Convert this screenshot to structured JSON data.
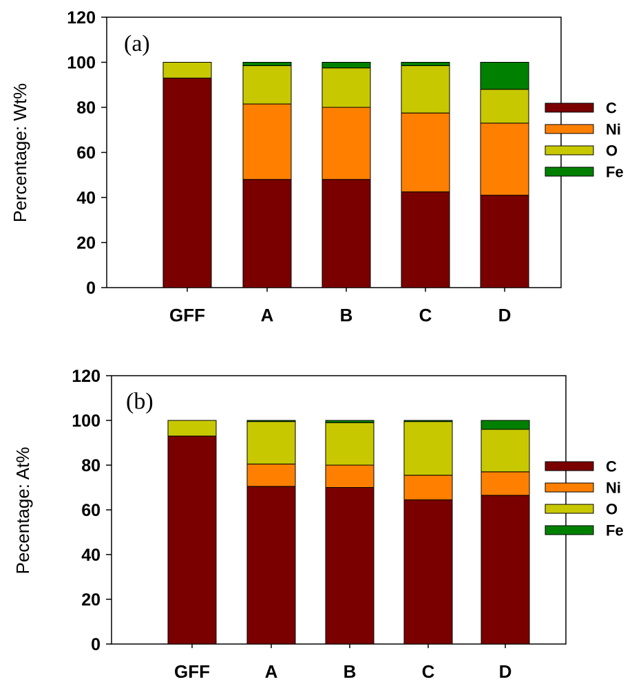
{
  "chart_data": [
    {
      "type": "bar",
      "stacked": true,
      "panel_label": "(a)",
      "ylabel": "Percentage: Wt%",
      "ylim": [
        0,
        120
      ],
      "yticks": [
        0,
        20,
        40,
        60,
        80,
        100,
        120
      ],
      "categories": [
        "GFF",
        "A",
        "B",
        "C",
        "D"
      ],
      "legend_position": "right",
      "series": [
        {
          "name": "C",
          "color": "#7a0000",
          "values": [
            93,
            48,
            48,
            42.5,
            41
          ]
        },
        {
          "name": "Ni",
          "color": "#ff8000",
          "values": [
            0,
            33.5,
            32,
            35,
            32
          ]
        },
        {
          "name": "O",
          "color": "#c8c800",
          "values": [
            7,
            17,
            17.5,
            21,
            15
          ]
        },
        {
          "name": "Fe",
          "color": "#008000",
          "values": [
            0,
            1.5,
            2.5,
            1.5,
            12
          ]
        }
      ]
    },
    {
      "type": "bar",
      "stacked": true,
      "panel_label": "(b)",
      "ylabel": "Pecentage: At%",
      "ylim": [
        0,
        120
      ],
      "yticks": [
        0,
        20,
        40,
        60,
        80,
        100,
        120
      ],
      "categories": [
        "GFF",
        "A",
        "B",
        "C",
        "D"
      ],
      "legend_position": "right",
      "series": [
        {
          "name": "C",
          "color": "#7a0000",
          "values": [
            93,
            70.5,
            70,
            64.5,
            66.5
          ]
        },
        {
          "name": "Ni",
          "color": "#ff8000",
          "values": [
            0,
            10,
            10,
            11,
            10.5
          ]
        },
        {
          "name": "O",
          "color": "#c8c800",
          "values": [
            7,
            19,
            19,
            24,
            19
          ]
        },
        {
          "name": "Fe",
          "color": "#008000",
          "values": [
            0,
            0.5,
            1,
            0.5,
            4
          ]
        }
      ]
    }
  ]
}
